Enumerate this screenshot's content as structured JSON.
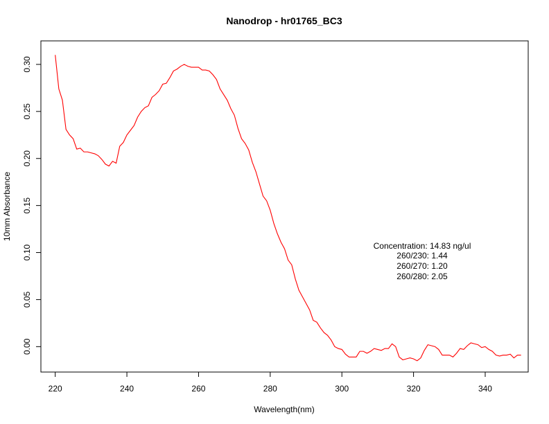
{
  "chart_data": {
    "type": "line",
    "title": "Nanodrop - hr01765_BC3",
    "xlabel": "Wavelength(nm)",
    "ylabel": "10mm Absorbance",
    "xlim": [
      216,
      352
    ],
    "ylim": [
      -0.027,
      0.325
    ],
    "x_ticks": [
      220,
      240,
      260,
      280,
      300,
      320,
      340
    ],
    "x_tick_labels": [
      "220",
      "240",
      "260",
      "280",
      "300",
      "320",
      "340"
    ],
    "y_ticks": [
      0.0,
      0.05,
      0.1,
      0.15,
      0.2,
      0.25,
      0.3
    ],
    "y_tick_labels": [
      "0.00",
      "0.05",
      "0.10",
      "0.15",
      "0.20",
      "0.25",
      "0.30"
    ],
    "grid": false,
    "colors": {
      "series": "#ff0000",
      "axes": "#000000",
      "background": "#ffffff"
    },
    "series": [
      {
        "x": [
          220,
          221,
          222,
          223,
          224,
          225,
          226,
          227,
          228,
          229,
          230,
          231,
          232,
          233,
          234,
          235,
          236,
          237,
          238,
          239,
          240,
          241,
          242,
          243,
          244,
          245,
          246,
          247,
          248,
          249,
          250,
          251,
          252,
          253,
          254,
          255,
          256,
          257,
          258,
          259,
          260,
          261,
          262,
          263,
          264,
          265,
          266,
          267,
          268,
          269,
          270,
          271,
          272,
          273,
          274,
          275,
          276,
          277,
          278,
          279,
          280,
          281,
          282,
          283,
          284,
          285,
          286,
          287,
          288,
          289,
          290,
          291,
          292,
          293,
          294,
          295,
          296,
          297,
          298,
          299,
          300,
          301,
          302,
          303,
          304,
          305,
          306,
          307,
          308,
          309,
          310,
          311,
          312,
          313,
          314,
          315,
          316,
          317,
          318,
          319,
          320,
          321,
          322,
          323,
          324,
          325,
          326,
          327,
          328,
          329,
          330,
          331,
          332,
          333,
          334,
          335,
          336,
          337,
          338,
          339,
          340,
          341,
          342,
          343,
          344,
          345,
          346,
          347,
          348,
          349,
          350
        ],
        "y": [
          0.31,
          0.274,
          0.262,
          0.231,
          0.225,
          0.221,
          0.21,
          0.211,
          0.207,
          0.207,
          0.206,
          0.205,
          0.203,
          0.199,
          0.194,
          0.192,
          0.197,
          0.195,
          0.213,
          0.217,
          0.225,
          0.23,
          0.235,
          0.244,
          0.25,
          0.254,
          0.256,
          0.265,
          0.268,
          0.272,
          0.279,
          0.28,
          0.286,
          0.293,
          0.295,
          0.298,
          0.3,
          0.298,
          0.297,
          0.297,
          0.297,
          0.294,
          0.294,
          0.293,
          0.289,
          0.284,
          0.274,
          0.268,
          0.262,
          0.253,
          0.246,
          0.232,
          0.221,
          0.216,
          0.209,
          0.196,
          0.186,
          0.173,
          0.16,
          0.155,
          0.145,
          0.131,
          0.12,
          0.111,
          0.104,
          0.092,
          0.087,
          0.072,
          0.06,
          0.053,
          0.046,
          0.039,
          0.028,
          0.026,
          0.02,
          0.015,
          0.012,
          0.007,
          0.0,
          -0.002,
          -0.003,
          -0.008,
          -0.011,
          -0.011,
          -0.011,
          -0.005,
          -0.005,
          -0.007,
          -0.005,
          -0.002,
          -0.003,
          -0.004,
          -0.002,
          -0.002,
          0.003,
          0.0,
          -0.011,
          -0.014,
          -0.013,
          -0.012,
          -0.013,
          -0.015,
          -0.012,
          -0.004,
          0.002,
          0.001,
          0.0,
          -0.003,
          -0.009,
          -0.009,
          -0.009,
          -0.011,
          -0.007,
          -0.002,
          -0.003,
          0.001,
          0.004,
          0.003,
          0.002,
          -0.001,
          0.0,
          -0.003,
          -0.005,
          -0.009,
          -0.01,
          -0.009,
          -0.009,
          -0.008,
          -0.012,
          -0.009,
          -0.009
        ]
      }
    ],
    "annotations": [
      "Concentration: 14.83 ng/ul",
      "260/230: 1.44",
      "260/270: 1.20",
      "260/280: 2.05"
    ]
  }
}
